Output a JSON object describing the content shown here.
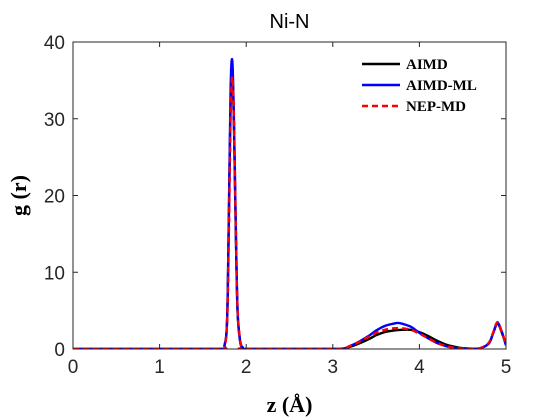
{
  "chart_data": {
    "type": "line",
    "title": "Ni-N",
    "xlabel": "z (Å)",
    "ylabel": "g (r)",
    "xlim": [
      0,
      5
    ],
    "ylim": [
      0,
      40
    ],
    "xticks": [
      0,
      1,
      2,
      3,
      4,
      5
    ],
    "xtick_labels": [
      "0",
      "1",
      "2",
      "3",
      "4",
      "5"
    ],
    "yticks": [
      0,
      10,
      20,
      30,
      40
    ],
    "ytick_labels": [
      "0",
      "10",
      "20",
      "30",
      "40"
    ],
    "grid": false,
    "legend_position": "top-right",
    "series": [
      {
        "name": "AIMD",
        "color": "#000000",
        "dash": "solid",
        "x": [
          0,
          1.0,
          1.7,
          1.75,
          1.78,
          1.8,
          1.82,
          1.84,
          1.86,
          1.88,
          1.9,
          1.93,
          1.96,
          2.0,
          3.0,
          3.2,
          3.4,
          3.5,
          3.6,
          3.7,
          3.8,
          3.9,
          4.0,
          4.1,
          4.2,
          4.3,
          4.4,
          4.5,
          4.6,
          4.7,
          4.8,
          4.85,
          4.9,
          4.95,
          5.0
        ],
        "y": [
          0,
          0,
          0,
          0.5,
          4,
          17,
          32,
          36.5,
          28,
          15,
          5,
          1,
          0.2,
          0,
          0,
          0.3,
          1.2,
          1.8,
          2.2,
          2.4,
          2.5,
          2.5,
          2.2,
          1.7,
          1.1,
          0.6,
          0.3,
          0.1,
          0.05,
          0.1,
          0.7,
          2.0,
          3.3,
          2.2,
          0.5
        ]
      },
      {
        "name": "AIMD-ML",
        "color": "#0000ff",
        "dash": "solid",
        "x": [
          0,
          1.0,
          1.7,
          1.75,
          1.78,
          1.8,
          1.82,
          1.84,
          1.86,
          1.88,
          1.9,
          1.93,
          1.96,
          2.0,
          3.0,
          3.2,
          3.4,
          3.5,
          3.6,
          3.7,
          3.75,
          3.8,
          3.9,
          4.0,
          4.1,
          4.2,
          4.3,
          4.4,
          4.5,
          4.6,
          4.7,
          4.8,
          4.85,
          4.9,
          4.95,
          5.0
        ],
        "y": [
          0,
          0,
          0,
          0.5,
          4,
          18,
          34,
          37.5,
          29,
          16,
          5,
          1,
          0.2,
          0,
          0,
          0.4,
          1.6,
          2.4,
          3.0,
          3.3,
          3.4,
          3.3,
          2.9,
          2.1,
          1.4,
          0.8,
          0.4,
          0.15,
          0.05,
          0.02,
          0.1,
          0.7,
          2.0,
          3.4,
          2.3,
          0.5
        ]
      },
      {
        "name": "NEP-MD",
        "color": "#ff0000",
        "dash": "dashed",
        "x": [
          0,
          1.0,
          1.7,
          1.75,
          1.78,
          1.8,
          1.82,
          1.84,
          1.86,
          1.88,
          1.9,
          1.93,
          1.96,
          2.0,
          3.0,
          3.2,
          3.4,
          3.5,
          3.6,
          3.7,
          3.8,
          3.9,
          4.0,
          4.1,
          4.2,
          4.3,
          4.4,
          4.5,
          4.6,
          4.7,
          4.8,
          4.85,
          4.9,
          4.95,
          5.0
        ],
        "y": [
          0,
          0,
          0,
          0.4,
          3.5,
          15,
          30,
          35.5,
          29,
          16,
          5.5,
          1.2,
          0.2,
          0,
          0,
          0.4,
          1.5,
          2.1,
          2.5,
          2.7,
          2.7,
          2.5,
          2.0,
          1.4,
          0.8,
          0.4,
          0.15,
          0.05,
          0.02,
          0.1,
          0.8,
          2.1,
          3.5,
          2.3,
          0.5
        ]
      }
    ]
  }
}
